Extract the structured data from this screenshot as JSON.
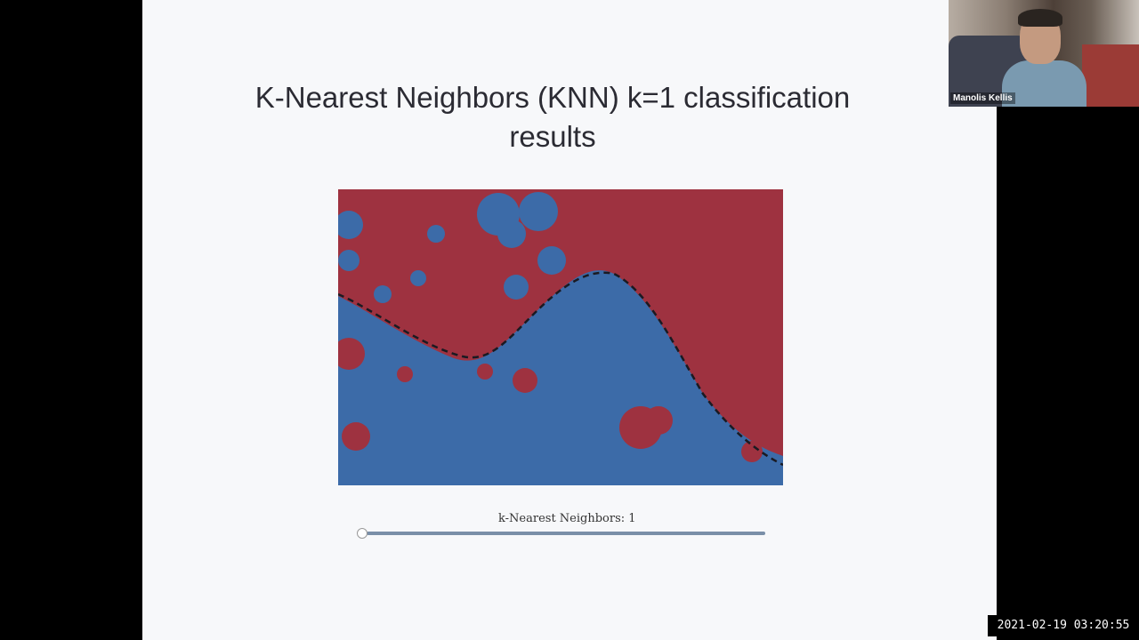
{
  "slide": {
    "title": "K-Nearest Neighbors (KNN) k=1 classification results"
  },
  "plot": {
    "colors": {
      "class_a": "#9e3240",
      "class_b": "#3c6ba8"
    }
  },
  "slider": {
    "label": "k-Nearest Neighbors: 1",
    "value": 1
  },
  "video": {
    "participant_name": "Manolis Kellis"
  },
  "timestamp": "2021-02-19 03:20:55"
}
